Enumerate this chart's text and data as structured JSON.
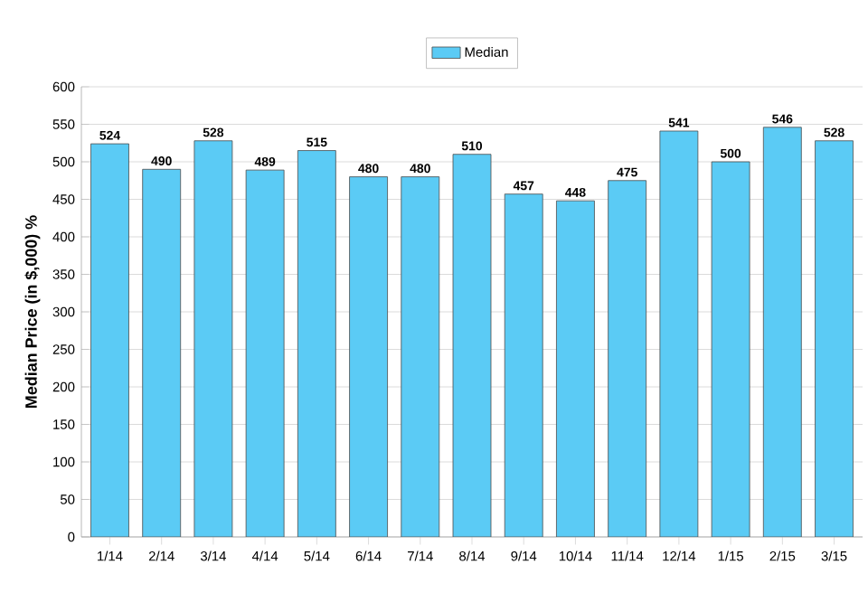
{
  "chart_data": {
    "type": "bar",
    "ylabel": "Median Price (in $,000) %",
    "categories": [
      "1/14",
      "2/14",
      "3/14",
      "4/14",
      "5/14",
      "6/14",
      "7/14",
      "8/14",
      "9/14",
      "10/14",
      "11/14",
      "12/14",
      "1/15",
      "2/15",
      "3/15"
    ],
    "series": [
      {
        "name": "Median",
        "color": "#5bcbf5",
        "values": [
          524,
          490,
          528,
          489,
          515,
          480,
          480,
          510,
          457,
          448,
          475,
          541,
          500,
          546,
          528
        ]
      }
    ],
    "ylim": [
      0,
      600
    ],
    "yticks": [
      0,
      50,
      100,
      150,
      200,
      250,
      300,
      350,
      400,
      450,
      500,
      550,
      600
    ],
    "grid": "y",
    "legend": "top",
    "data_labels": true
  }
}
